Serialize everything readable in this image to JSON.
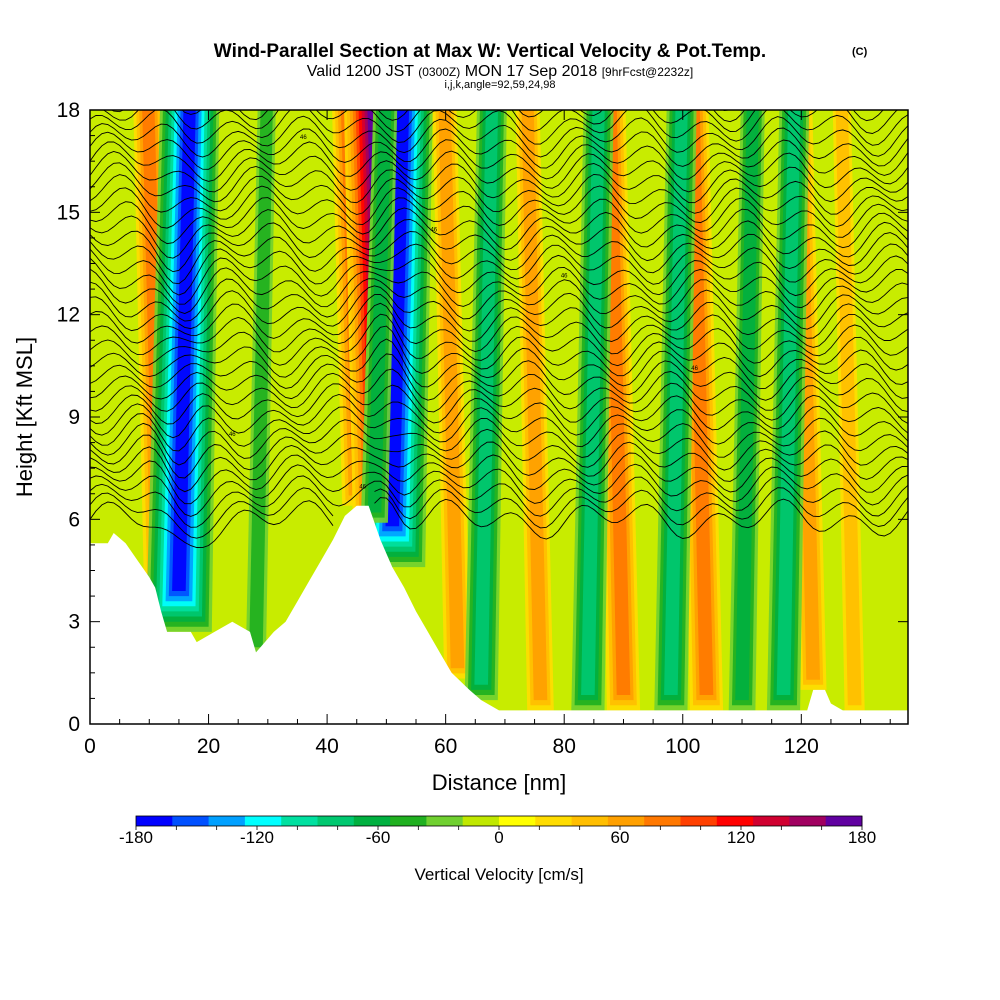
{
  "chart_data": {
    "type": "heatmap",
    "title": "Wind-Parallel Section at Max W: Vertical Velocity & Pot.Temp.",
    "title_mark": "(C)",
    "subtitle_main": "Valid 1200 JST",
    "subtitle_utc": "(0300Z)",
    "subtitle_date": "MON 17 Sep 2018",
    "subtitle_fcst": "[9hrFcst@2232z]",
    "subtitle2": "i,j,k,angle=92,59,24,98",
    "xlabel": "Distance [nm]",
    "ylabel": "Height [Kft MSL]",
    "xlim": [
      0,
      138
    ],
    "ylim": [
      0,
      18
    ],
    "xticks": [
      0,
      20,
      40,
      60,
      80,
      100,
      120
    ],
    "yticks": [
      0,
      3,
      6,
      9,
      12,
      15,
      18
    ],
    "colorbar": {
      "label": "Vertical Velocity [cm/s]",
      "min": -180,
      "max": 180,
      "step": 20,
      "tick_values": [
        -180,
        -120,
        -60,
        0,
        60,
        120,
        180
      ],
      "colors": [
        "#0000ff",
        "#0050ff",
        "#00a0ff",
        "#00ffff",
        "#00e0a0",
        "#00c870",
        "#00b040",
        "#20b020",
        "#70d030",
        "#c0e800",
        "#ffff00",
        "#ffdc00",
        "#ffbe00",
        "#ffa000",
        "#ff7800",
        "#ff4000",
        "#ff0000",
        "#d00030",
        "#a00060",
        "#6000a0"
      ]
    },
    "terrain_kft": [
      [
        0,
        5.3
      ],
      [
        3,
        5.3
      ],
      [
        4,
        5.6
      ],
      [
        6,
        5.3
      ],
      [
        8,
        4.8
      ],
      [
        10,
        4.3
      ],
      [
        11,
        4.0
      ],
      [
        12,
        3.3
      ],
      [
        13,
        2.7
      ],
      [
        17,
        2.7
      ],
      [
        18,
        2.4
      ],
      [
        21,
        2.7
      ],
      [
        24,
        3.0
      ],
      [
        27,
        2.7
      ],
      [
        28,
        2.1
      ],
      [
        31,
        2.7
      ],
      [
        33,
        3.0
      ],
      [
        35,
        3.6
      ],
      [
        37,
        4.2
      ],
      [
        39,
        4.8
      ],
      [
        41,
        5.4
      ],
      [
        43,
        6.1
      ],
      [
        45,
        6.4
      ],
      [
        47,
        6.4
      ],
      [
        49,
        5.4
      ],
      [
        51,
        4.6
      ],
      [
        53,
        4.0
      ],
      [
        55,
        3.3
      ],
      [
        57,
        2.7
      ],
      [
        59,
        2.1
      ],
      [
        61,
        1.5
      ],
      [
        64,
        1.0
      ],
      [
        66,
        0.7
      ],
      [
        69,
        0.4
      ],
      [
        72,
        0.4
      ],
      [
        121,
        0.4
      ],
      [
        122,
        1.0
      ],
      [
        124,
        1.0
      ],
      [
        125,
        0.6
      ],
      [
        127,
        0.4
      ],
      [
        132,
        0.4
      ],
      [
        138,
        0.4
      ]
    ],
    "updraft_bands": [
      [
        12,
        0.4
      ],
      [
        47,
        0.75
      ],
      [
        50,
        1.0
      ],
      [
        62,
        0.35
      ],
      [
        76,
        0.3
      ],
      [
        90,
        0.4
      ],
      [
        104,
        0.4
      ],
      [
        122,
        0.35
      ],
      [
        129,
        0.25
      ]
    ],
    "downdraft_bands": [
      [
        15,
        1.0
      ],
      [
        51,
        1.0
      ],
      [
        48,
        0.35
      ],
      [
        28,
        0.25
      ],
      [
        66,
        0.45
      ],
      [
        84,
        0.45
      ],
      [
        98,
        0.45
      ],
      [
        117,
        0.4
      ],
      [
        110,
        0.3
      ]
    ],
    "theta_label": "46",
    "theta_contour_count": 40
  }
}
